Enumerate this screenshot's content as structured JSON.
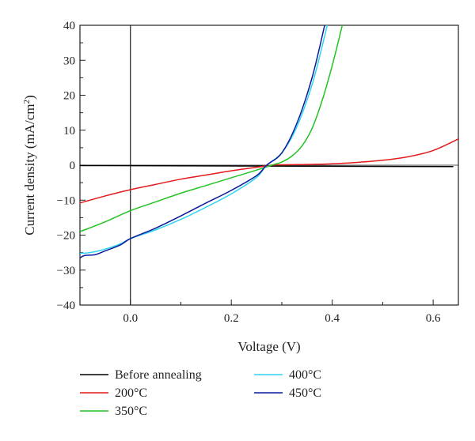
{
  "chart_data": {
    "type": "line",
    "xlabel": "Voltage (V)",
    "ylabel_parts": [
      "Current density (mA/cm",
      "2",
      ")"
    ],
    "xlim": [
      -0.1,
      0.65
    ],
    "ylim": [
      -40,
      40
    ],
    "xticks": [
      {
        "value": 0.0,
        "label": "0.0"
      },
      {
        "value": 0.2,
        "label": "0.2"
      },
      {
        "value": 0.4,
        "label": "0.4"
      },
      {
        "value": 0.6,
        "label": "0.6"
      }
    ],
    "yticks": [
      {
        "value": -40,
        "label": "−40"
      },
      {
        "value": -30,
        "label": "−30"
      },
      {
        "value": -20,
        "label": "−20"
      },
      {
        "value": -10,
        "label": "−10"
      },
      {
        "value": 0,
        "label": "0"
      },
      {
        "value": 10,
        "label": "10"
      },
      {
        "value": 20,
        "label": "20"
      },
      {
        "value": 30,
        "label": "30"
      },
      {
        "value": 40,
        "label": "40"
      }
    ],
    "zero_lines": true,
    "grid": false,
    "legend_position": "bottom",
    "series": [
      {
        "name": "Before annealing",
        "color": "#000000",
        "x": [
          -0.1,
          0.64
        ],
        "y": [
          -0.1,
          -0.4
        ]
      },
      {
        "name": "200°C",
        "color": "#e31a1c",
        "x": [
          -0.1,
          -0.05,
          0.0,
          0.05,
          0.1,
          0.15,
          0.2,
          0.25,
          0.28,
          0.3,
          0.35,
          0.4,
          0.45,
          0.5,
          0.55,
          0.6,
          0.65
        ],
        "y": [
          -10.8,
          -8.8,
          -7.0,
          -5.5,
          -4.0,
          -2.8,
          -1.6,
          -0.6,
          0.0,
          0.1,
          0.2,
          0.4,
          0.8,
          1.4,
          2.4,
          4.2,
          7.5
        ]
      },
      {
        "name": "350°C",
        "color": "#22c322",
        "x": [
          -0.1,
          -0.05,
          0.0,
          0.05,
          0.1,
          0.15,
          0.2,
          0.25,
          0.28,
          0.3,
          0.32,
          0.34,
          0.36,
          0.38,
          0.4,
          0.42
        ],
        "y": [
          -19.0,
          -16.2,
          -13.0,
          -10.5,
          -8.0,
          -5.8,
          -3.6,
          -1.4,
          0.0,
          0.9,
          2.6,
          5.5,
          10.5,
          18.5,
          28.5,
          40.0
        ]
      },
      {
        "name": "400°C",
        "color": "#2fd4ee",
        "x": [
          -0.1,
          -0.08,
          -0.05,
          -0.02,
          0.0,
          0.05,
          0.1,
          0.15,
          0.2,
          0.25,
          0.27,
          0.3,
          0.33,
          0.36,
          0.38,
          0.39
        ],
        "y": [
          -25.2,
          -25.0,
          -24.0,
          -22.5,
          -21.0,
          -18.5,
          -15.5,
          -12.0,
          -8.2,
          -3.5,
          0.0,
          3.5,
          11.0,
          23.0,
          34.0,
          40.0
        ]
      },
      {
        "name": "450°C",
        "color": "#0a1a9c",
        "x": [
          -0.1,
          -0.09,
          -0.07,
          -0.05,
          -0.02,
          0.0,
          0.05,
          0.1,
          0.15,
          0.2,
          0.25,
          0.27,
          0.3,
          0.33,
          0.36,
          0.385
        ],
        "y": [
          -26.5,
          -25.8,
          -25.6,
          -24.5,
          -22.8,
          -21.0,
          -18.0,
          -14.5,
          -10.8,
          -7.2,
          -3.0,
          0.0,
          3.5,
          12.0,
          25.0,
          40.0
        ]
      }
    ]
  }
}
